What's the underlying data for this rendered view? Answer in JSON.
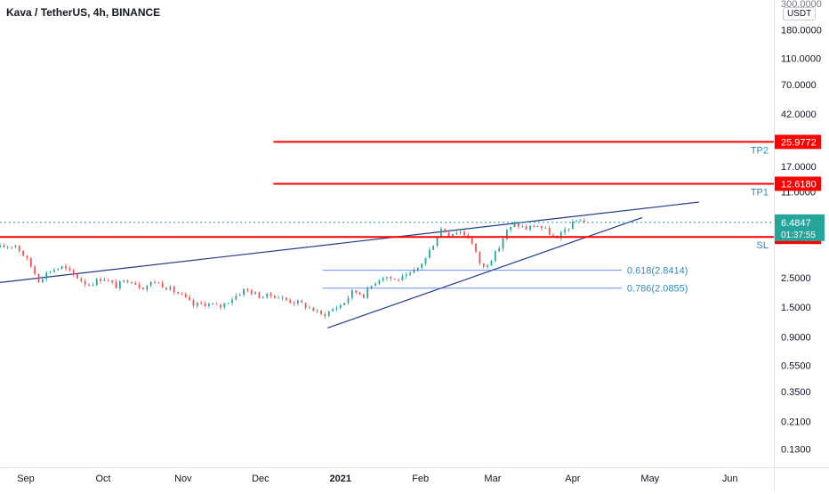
{
  "header": {
    "title": "Kava / TetherUS, 4h, BINANCE",
    "currency": "USDT"
  },
  "colors": {
    "up": "#26a69a",
    "down": "#ef5350",
    "level": "#ff0000",
    "trend": "#1e3a8a",
    "fib": "#2962ff",
    "last": "#26a69a",
    "label_text": "#2f8bb8"
  },
  "chart_data": {
    "type": "candlestick",
    "title": "Kava / TetherUS, 4h, BINANCE",
    "yscale": "log",
    "ylim": [
      0.095,
      300.0
    ],
    "xlim": [
      "2020-08-22",
      "2021-06-18"
    ],
    "y_ticks": [
      {
        "v": 180.0,
        "label": "180.0000"
      },
      {
        "v": 110.0,
        "label": "110.0000"
      },
      {
        "v": 70.0,
        "label": "70.0000"
      },
      {
        "v": 42.0,
        "label": "42.0000"
      },
      {
        "v": 17.0,
        "label": "17.0000"
      },
      {
        "v": 11.0,
        "label": "11.0000"
      },
      {
        "v": 2.5,
        "label": "2.5000"
      },
      {
        "v": 1.5,
        "label": "1.5000"
      },
      {
        "v": 0.9,
        "label": "0.9000"
      },
      {
        "v": 0.55,
        "label": "0.5500"
      },
      {
        "v": 0.35,
        "label": "0.3500"
      },
      {
        "v": 0.21,
        "label": "0.2100"
      },
      {
        "v": 0.13,
        "label": "0.1300"
      }
    ],
    "x_ticks": [
      {
        "date": "2020-09-01",
        "label": "Sep"
      },
      {
        "date": "2020-10-01",
        "label": "Oct"
      },
      {
        "date": "2020-11-01",
        "label": "Nov"
      },
      {
        "date": "2020-12-01",
        "label": "Dec"
      },
      {
        "date": "2021-01-01",
        "label": "2021",
        "bold": true
      },
      {
        "date": "2021-02-01",
        "label": "Feb"
      },
      {
        "date": "2021-03-01",
        "label": "Mar"
      },
      {
        "date": "2021-04-01",
        "label": "Apr"
      },
      {
        "date": "2021-05-01",
        "label": "May"
      },
      {
        "date": "2021-06-01",
        "label": "Jun"
      }
    ],
    "price_path": [
      [
        "2020-08-22",
        4.2
      ],
      [
        "2020-08-28",
        4.4
      ],
      [
        "2020-09-02",
        3.3
      ],
      [
        "2020-09-06",
        2.4
      ],
      [
        "2020-09-10",
        2.8
      ],
      [
        "2020-09-15",
        3.0
      ],
      [
        "2020-09-20",
        2.6
      ],
      [
        "2020-09-25",
        2.2
      ],
      [
        "2020-10-01",
        2.5
      ],
      [
        "2020-10-06",
        2.15
      ],
      [
        "2020-10-11",
        2.45
      ],
      [
        "2020-10-16",
        2.1
      ],
      [
        "2020-10-21",
        2.35
      ],
      [
        "2020-10-27",
        2.05
      ],
      [
        "2020-11-01",
        1.8
      ],
      [
        "2020-11-05",
        1.55
      ],
      [
        "2020-11-10",
        1.6
      ],
      [
        "2020-11-15",
        1.5
      ],
      [
        "2020-11-20",
        1.75
      ],
      [
        "2020-11-25",
        2.05
      ],
      [
        "2020-12-01",
        1.8
      ],
      [
        "2020-12-06",
        1.85
      ],
      [
        "2020-12-11",
        1.7
      ],
      [
        "2020-12-16",
        1.62
      ],
      [
        "2020-12-21",
        1.45
      ],
      [
        "2020-12-25",
        1.3
      ],
      [
        "2020-12-29",
        1.45
      ],
      [
        "2021-01-02",
        1.6
      ],
      [
        "2021-01-06",
        2.0
      ],
      [
        "2021-01-10",
        1.85
      ],
      [
        "2021-01-14",
        2.3
      ],
      [
        "2021-01-18",
        2.6
      ],
      [
        "2021-01-22",
        2.4
      ],
      [
        "2021-01-26",
        2.5
      ],
      [
        "2021-01-30",
        2.8
      ],
      [
        "2021-02-03",
        3.5
      ],
      [
        "2021-02-06",
        4.5
      ],
      [
        "2021-02-09",
        5.8
      ],
      [
        "2021-02-12",
        5.3
      ],
      [
        "2021-02-16",
        5.6
      ],
      [
        "2021-02-20",
        5.0
      ],
      [
        "2021-02-23",
        3.6
      ],
      [
        "2021-02-25",
        2.9
      ],
      [
        "2021-02-28",
        3.4
      ],
      [
        "2021-03-03",
        4.0
      ],
      [
        "2021-03-06",
        5.5
      ],
      [
        "2021-03-10",
        6.3
      ],
      [
        "2021-03-14",
        5.8
      ],
      [
        "2021-03-18",
        6.2
      ],
      [
        "2021-03-22",
        5.6
      ],
      [
        "2021-03-26",
        4.8
      ],
      [
        "2021-03-29",
        5.7
      ],
      [
        "2021-04-01",
        6.3
      ],
      [
        "2021-04-04",
        6.9
      ],
      [
        "2021-04-06",
        6.48
      ]
    ]
  },
  "levels": [
    {
      "name": "TP2",
      "price": 25.9772,
      "label": "25.9772",
      "start": "2020-12-06"
    },
    {
      "name": "TP1",
      "price": 12.618,
      "label": "12.6180",
      "start": "2020-12-06"
    },
    {
      "name": "SL",
      "price": 5.0436,
      "label": "5.0436",
      "start": "2020-08-22"
    }
  ],
  "fib_levels": [
    {
      "price": 2.8414,
      "label": "0.618(2.8414)",
      "start": "2021-01-01",
      "end": "2021-04-20"
    },
    {
      "price": 2.0855,
      "label": "0.786(2.0855)",
      "start": "2021-01-01",
      "end": "2021-04-20"
    }
  ],
  "trendlines": [
    {
      "from": [
        "2020-08-22",
        2.3
      ],
      "to": [
        "2021-05-20",
        9.2
      ]
    },
    {
      "from": [
        "2020-12-27",
        1.05
      ],
      "to": [
        "2021-04-28",
        7.05
      ]
    }
  ],
  "last_price": {
    "label": "6.4847",
    "countdown": "01:37:55",
    "value": 6.4847
  }
}
